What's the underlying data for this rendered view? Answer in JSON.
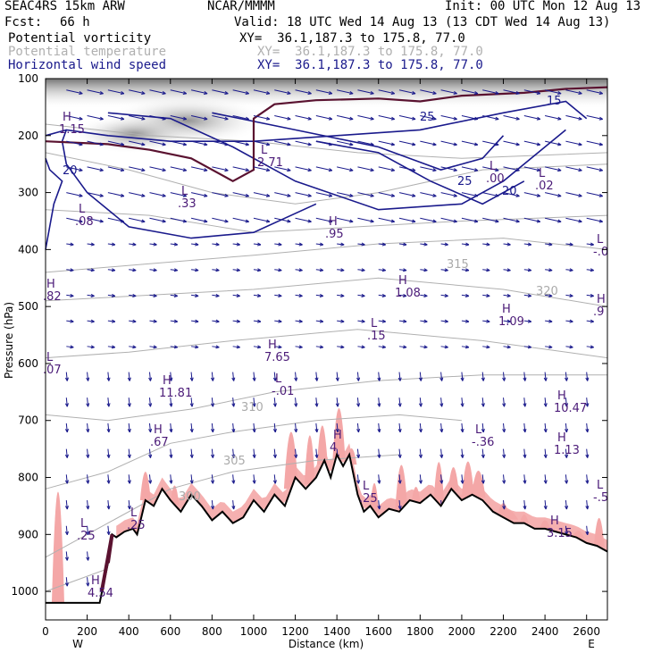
{
  "header": {
    "model": "SEAC4RS 15km ARW",
    "org": "NCAR/MMMM",
    "init": "Init: 00 UTC Mon 12 Aug 13",
    "fcst_label": "Fcst:",
    "fcst_value": "66 h",
    "valid": "Valid: 18 UTC Wed 14 Aug 13 (13 CDT Wed 14 Aug 13)",
    "fields": [
      {
        "name": "Potential vorticity",
        "xy": "XY=  36.1,187.3 to 175.8, 77.0"
      },
      {
        "name": "Potential temperature",
        "xy": "XY=  36.1,187.3 to 175.8, 77.0"
      },
      {
        "name": "Horizontal wind speed",
        "xy": "XY=  36.1,187.3 to 175.8, 77.0"
      }
    ]
  },
  "colors": {
    "pv_fill": "#f4a7a7",
    "pv_gray": "#7a7a7a",
    "theta": "#b0b0b0",
    "wind": "#1a1a8c",
    "tropopause": "#5a1230",
    "terrain": "#000000",
    "hl": "#4b1b78"
  },
  "chart_data": {
    "type": "heatmap",
    "xlabel": "Distance (km)",
    "ylabel": "Pressure (hPa)",
    "xlim": [
      0,
      2700
    ],
    "ylim": [
      1050,
      100
    ],
    "x_ticks": [
      0,
      200,
      400,
      600,
      800,
      1000,
      1200,
      1400,
      1600,
      1800,
      2000,
      2200,
      2400,
      2600
    ],
    "y_ticks": [
      100,
      200,
      300,
      400,
      500,
      600,
      700,
      800,
      900,
      1000
    ],
    "endpoints": {
      "left": "W",
      "right": "E"
    },
    "terrain": {
      "x": [
        0,
        130,
        260,
        300,
        320,
        340,
        380,
        420,
        440,
        460,
        480,
        520,
        560,
        600,
        650,
        700,
        750,
        800,
        850,
        900,
        950,
        1000,
        1050,
        1100,
        1150,
        1200,
        1250,
        1300,
        1340,
        1370,
        1400,
        1430,
        1460,
        1500,
        1530,
        1560,
        1600,
        1650,
        1700,
        1750,
        1800,
        1850,
        1900,
        1950,
        2000,
        2050,
        2100,
        2150,
        2200,
        2250,
        2300,
        2350,
        2400,
        2450,
        2500,
        2550,
        2600,
        2650,
        2700
      ],
      "p": [
        1020,
        1020,
        1020,
        950,
        900,
        905,
        895,
        890,
        900,
        870,
        840,
        850,
        820,
        840,
        860,
        830,
        850,
        875,
        860,
        880,
        870,
        840,
        860,
        830,
        850,
        800,
        820,
        800,
        770,
        800,
        760,
        780,
        760,
        830,
        860,
        850,
        870,
        855,
        860,
        840,
        845,
        830,
        850,
        820,
        840,
        830,
        840,
        860,
        870,
        880,
        880,
        890,
        890,
        895,
        900,
        905,
        915,
        920,
        930
      ]
    },
    "theta_labels": [
      "335",
      "330",
      "325",
      "320",
      "315",
      "310",
      "305",
      "300",
      "315",
      "310",
      "320",
      "325",
      "330",
      "335",
      "330"
    ],
    "wind_labels": [
      "25",
      "20",
      "20",
      "25",
      "15"
    ],
    "pv_extrema": [
      {
        "kind": "H",
        "value": "1.15"
      },
      {
        "kind": "L",
        "value": ".08"
      },
      {
        "kind": "L",
        "value": ".33"
      },
      {
        "kind": "L",
        "value": "2.71"
      },
      {
        "kind": "H",
        "value": ".95"
      },
      {
        "kind": "H",
        "value": "1.08"
      },
      {
        "kind": "H",
        "value": "1.09"
      },
      {
        "kind": "L",
        "value": ".00"
      },
      {
        "kind": "L",
        "value": ".02"
      },
      {
        "kind": "L",
        "value": "-.0"
      },
      {
        "kind": "H",
        "value": ".82"
      },
      {
        "kind": "H",
        "value": ".9"
      },
      {
        "kind": "L",
        "value": ".07"
      },
      {
        "kind": "H",
        "value": "11.81"
      },
      {
        "kind": "H",
        "value": "7.65"
      },
      {
        "kind": "L",
        "value": ".15"
      },
      {
        "kind": "L",
        "value": "-.01"
      },
      {
        "kind": "H",
        "value": ".67"
      },
      {
        "kind": "H",
        "value": "4"
      },
      {
        "kind": "L",
        "value": "-.36"
      },
      {
        "kind": "H",
        "value": "10.47"
      },
      {
        "kind": "H",
        "value": "1.13"
      },
      {
        "kind": "L",
        "value": ".25"
      },
      {
        "kind": "L",
        "value": ".25"
      },
      {
        "kind": "L",
        "value": ".25"
      },
      {
        "kind": "H",
        "value": "4.54"
      },
      {
        "kind": "H",
        "value": "3.15"
      },
      {
        "kind": "L",
        "value": "-.5"
      }
    ]
  }
}
